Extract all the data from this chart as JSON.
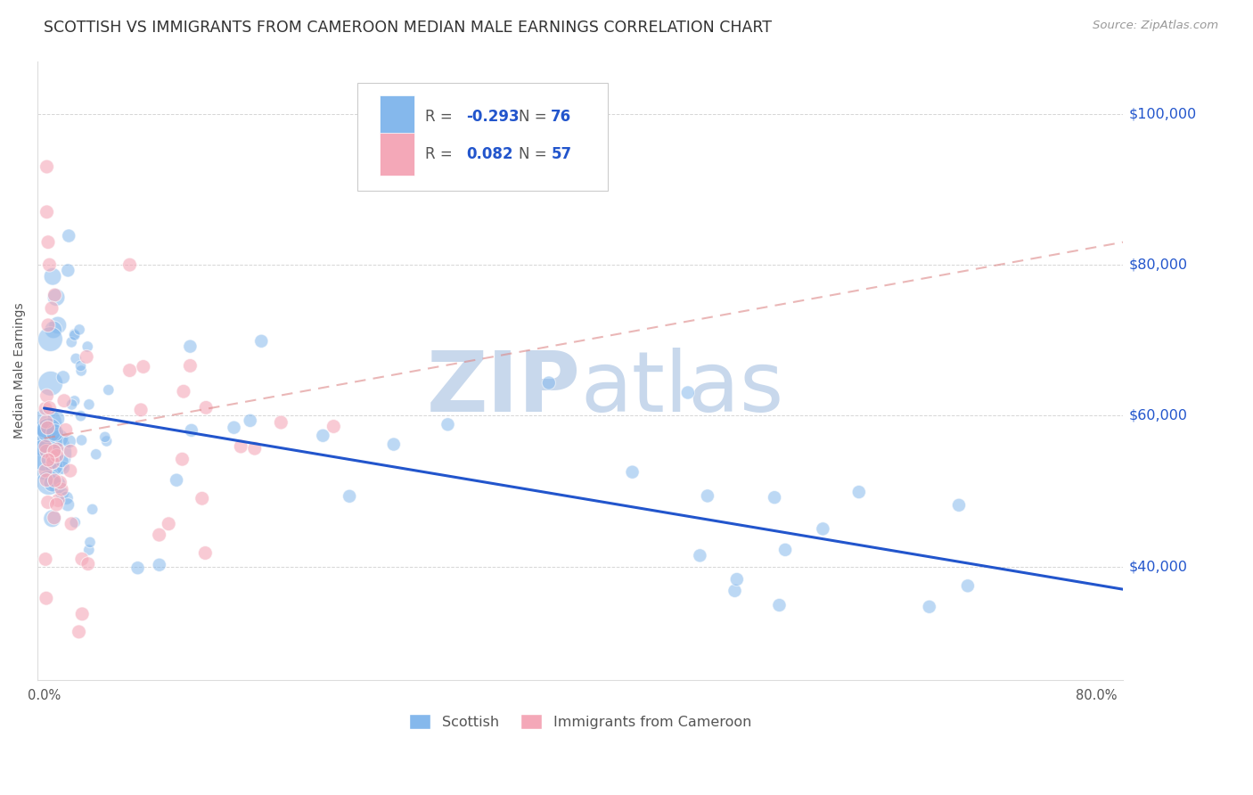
{
  "title": "SCOTTISH VS IMMIGRANTS FROM CAMEROON MEDIAN MALE EARNINGS CORRELATION CHART",
  "source": "Source: ZipAtlas.com",
  "ylabel": "Median Male Earnings",
  "ytick_labels": [
    "$100,000",
    "$80,000",
    "$60,000",
    "$40,000"
  ],
  "ytick_values": [
    100000,
    80000,
    60000,
    40000
  ],
  "ylim": [
    25000,
    107000
  ],
  "xlim": [
    -0.005,
    0.82
  ],
  "scottish_color": "#85B8EC",
  "cameroon_color": "#F4A8B8",
  "trend_scottish_color": "#2255CC",
  "trend_cameroon_color": "#DD8888",
  "background_color": "#FFFFFF",
  "grid_color": "#BBBBBB",
  "watermark_color": "#C8D8EC",
  "title_color": "#333333",
  "source_color": "#999999",
  "label_color": "#555555",
  "right_label_color": "#2255CC",
  "legend_text_color": "#555555",
  "legend_value_color": "#2255CC",
  "trend_scot_x0": 0.0,
  "trend_scot_x1": 0.82,
  "trend_scot_y0": 61000,
  "trend_scot_y1": 37000,
  "trend_cam_x0": 0.0,
  "trend_cam_x1": 0.82,
  "trend_cam_y0": 57000,
  "trend_cam_y1": 83000,
  "R_scot": "-0.293",
  "N_scot": "76",
  "R_cam": "0.082",
  "N_cam": "57"
}
